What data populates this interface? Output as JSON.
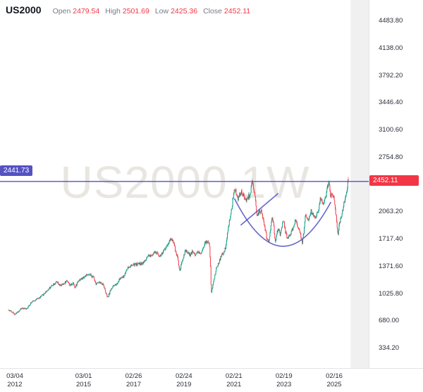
{
  "header": {
    "symbol": "US2000",
    "open_label": "Open",
    "open": "2479.54",
    "high_label": "High",
    "high": "2501.69",
    "low_label": "Low",
    "low": "2425.36",
    "close_label": "Close",
    "close": "2452.11"
  },
  "watermark": "US2000 1W",
  "colors": {
    "up": "#089981",
    "down": "#f23645",
    "value_text": "#f23645",
    "label_text": "#787b86",
    "axis_text": "#2a2e39",
    "line_purple": "#5552c4",
    "arc_purple": "rgba(85,88,196,0.9)",
    "last_price_bg": "#f23645",
    "line_badge_bg": "#5552c4",
    "future_band": "#f0f0f1",
    "watermark_color": "#e9e6e1"
  },
  "price_axis": {
    "ticks": [
      {
        "label": "4483.80",
        "value": 4483.8
      },
      {
        "label": "4138.00",
        "value": 4138.0
      },
      {
        "label": "3792.20",
        "value": 3792.2
      },
      {
        "label": "3446.40",
        "value": 3446.4
      },
      {
        "label": "3100.60",
        "value": 3100.6
      },
      {
        "label": "2754.80",
        "value": 2754.8
      },
      {
        "label": "2063.20",
        "value": 2063.2
      },
      {
        "label": "1717.40",
        "value": 1717.4
      },
      {
        "label": "1371.60",
        "value": 1371.6
      },
      {
        "label": "1025.80",
        "value": 1025.8
      },
      {
        "label": "680.00",
        "value": 680.0
      },
      {
        "label": "334.20",
        "value": 334.2
      }
    ]
  },
  "time_axis": {
    "ticks": [
      {
        "date": "03/04",
        "year": "2012",
        "t": 2012.17
      },
      {
        "date": "03/01",
        "year": "2015",
        "t": 2015.16
      },
      {
        "date": "02/26",
        "year": "2017",
        "t": 2017.15
      },
      {
        "date": "02/24",
        "year": "2019",
        "t": 2019.15
      },
      {
        "date": "02/21",
        "year": "2021",
        "t": 2021.14
      },
      {
        "date": "02/19",
        "year": "2023",
        "t": 2023.13
      },
      {
        "date": "02/16",
        "year": "2025",
        "t": 2025.13
      }
    ]
  },
  "last_price": {
    "label": "2452.11",
    "value": 2452.11
  },
  "drawing_line": {
    "label": "2441.73",
    "price": 2441.73
  },
  "chart_data": {
    "type": "candlestick",
    "symbol": "US2000",
    "timeframe": "1W",
    "title": "US2000 1W",
    "x_range": [
      2012.17,
      2025.7
    ],
    "y_ticks": [
      334.2,
      680.0,
      1025.8,
      1371.6,
      1717.4,
      2063.2,
      2409.0,
      2754.8,
      3100.6,
      3446.4,
      3792.2,
      4138.0,
      4483.8
    ],
    "grid": false,
    "last_bar": {
      "open": 2479.54,
      "high": 2501.69,
      "low": 2425.36,
      "close": 2452.11
    },
    "anchors": [
      [
        2012.17,
        810
      ],
      [
        2012.3,
        795
      ],
      [
        2012.42,
        755
      ],
      [
        2012.55,
        790
      ],
      [
        2012.7,
        835
      ],
      [
        2012.85,
        825
      ],
      [
        2012.95,
        850
      ],
      [
        2013.05,
        900
      ],
      [
        2013.2,
        935
      ],
      [
        2013.35,
        955
      ],
      [
        2013.5,
        990
      ],
      [
        2013.65,
        1040
      ],
      [
        2013.8,
        1090
      ],
      [
        2013.95,
        1140
      ],
      [
        2014.1,
        1165
      ],
      [
        2014.2,
        1120
      ],
      [
        2014.35,
        1135
      ],
      [
        2014.5,
        1190
      ],
      [
        2014.62,
        1120
      ],
      [
        2014.75,
        1160
      ],
      [
        2014.82,
        1090
      ],
      [
        2014.95,
        1190
      ],
      [
        2015.1,
        1210
      ],
      [
        2015.25,
        1250
      ],
      [
        2015.4,
        1255
      ],
      [
        2015.55,
        1230
      ],
      [
        2015.65,
        1150
      ],
      [
        2015.8,
        1160
      ],
      [
        2015.95,
        1135
      ],
      [
        2016.05,
        1020
      ],
      [
        2016.12,
        965
      ],
      [
        2016.25,
        1080
      ],
      [
        2016.4,
        1130
      ],
      [
        2016.5,
        1150
      ],
      [
        2016.6,
        1210
      ],
      [
        2016.75,
        1230
      ],
      [
        2016.9,
        1345
      ],
      [
        2017.0,
        1365
      ],
      [
        2017.15,
        1385
      ],
      [
        2017.3,
        1395
      ],
      [
        2017.45,
        1400
      ],
      [
        2017.6,
        1430
      ],
      [
        2017.7,
        1480
      ],
      [
        2017.85,
        1510
      ],
      [
        2017.95,
        1540
      ],
      [
        2018.1,
        1530
      ],
      [
        2018.2,
        1495
      ],
      [
        2018.35,
        1560
      ],
      [
        2018.5,
        1645
      ],
      [
        2018.62,
        1720
      ],
      [
        2018.72,
        1690
      ],
      [
        2018.82,
        1560
      ],
      [
        2018.9,
        1480
      ],
      [
        2018.98,
        1300
      ],
      [
        2019.1,
        1450
      ],
      [
        2019.2,
        1560
      ],
      [
        2019.3,
        1540
      ],
      [
        2019.4,
        1510
      ],
      [
        2019.5,
        1560
      ],
      [
        2019.6,
        1510
      ],
      [
        2019.7,
        1560
      ],
      [
        2019.8,
        1520
      ],
      [
        2019.9,
        1590
      ],
      [
        2019.98,
        1660
      ],
      [
        2020.1,
        1680
      ],
      [
        2020.16,
        1650
      ],
      [
        2020.2,
        1440
      ],
      [
        2020.24,
        1020
      ],
      [
        2020.3,
        1130
      ],
      [
        2020.38,
        1250
      ],
      [
        2020.45,
        1350
      ],
      [
        2020.55,
        1420
      ],
      [
        2020.65,
        1510
      ],
      [
        2020.75,
        1540
      ],
      [
        2020.82,
        1620
      ],
      [
        2020.9,
        1820
      ],
      [
        2020.98,
        1970
      ],
      [
        2021.06,
        2100
      ],
      [
        2021.12,
        2290
      ],
      [
        2021.2,
        2340
      ],
      [
        2021.28,
        2210
      ],
      [
        2021.36,
        2270
      ],
      [
        2021.45,
        2310
      ],
      [
        2021.55,
        2240
      ],
      [
        2021.65,
        2210
      ],
      [
        2021.72,
        2250
      ],
      [
        2021.8,
        2290
      ],
      [
        2021.86,
        2440
      ],
      [
        2021.92,
        2330
      ],
      [
        2021.98,
        2240
      ],
      [
        2022.06,
        2020
      ],
      [
        2022.14,
        2050
      ],
      [
        2022.22,
        2080
      ],
      [
        2022.3,
        1960
      ],
      [
        2022.38,
        1840
      ],
      [
        2022.45,
        1720
      ],
      [
        2022.52,
        1680
      ],
      [
        2022.6,
        1830
      ],
      [
        2022.65,
        2000
      ],
      [
        2022.72,
        1880
      ],
      [
        2022.78,
        1670
      ],
      [
        2022.85,
        1790
      ],
      [
        2022.92,
        1840
      ],
      [
        2022.98,
        1750
      ],
      [
        2023.06,
        1890
      ],
      [
        2023.12,
        1930
      ],
      [
        2023.2,
        1790
      ],
      [
        2023.26,
        1720
      ],
      [
        2023.35,
        1760
      ],
      [
        2023.45,
        1810
      ],
      [
        2023.52,
        1880
      ],
      [
        2023.6,
        1960
      ],
      [
        2023.66,
        1890
      ],
      [
        2023.75,
        1830
      ],
      [
        2023.82,
        1720
      ],
      [
        2023.86,
        1640
      ],
      [
        2023.92,
        1800
      ],
      [
        2023.98,
        2010
      ],
      [
        2024.05,
        1980
      ],
      [
        2024.12,
        1960
      ],
      [
        2024.2,
        2070
      ],
      [
        2024.28,
        2020
      ],
      [
        2024.35,
        1980
      ],
      [
        2024.45,
        2030
      ],
      [
        2024.52,
        2110
      ],
      [
        2024.58,
        2240
      ],
      [
        2024.65,
        2170
      ],
      [
        2024.72,
        2200
      ],
      [
        2024.8,
        2270
      ],
      [
        2024.87,
        2400
      ],
      [
        2024.92,
        2430
      ],
      [
        2024.98,
        2250
      ],
      [
        2025.05,
        2280
      ],
      [
        2025.12,
        2260
      ],
      [
        2025.18,
        2080
      ],
      [
        2025.24,
        1890
      ],
      [
        2025.28,
        1770
      ],
      [
        2025.34,
        1920
      ],
      [
        2025.42,
        2020
      ],
      [
        2025.5,
        2130
      ],
      [
        2025.56,
        2230
      ],
      [
        2025.62,
        2280
      ],
      [
        2025.66,
        2400
      ],
      [
        2025.7,
        2452.11
      ]
    ],
    "annotations": {
      "horizontal_line": {
        "price": 2441.73,
        "label": "2441.73"
      },
      "arc": {
        "from": {
          "t": 2021.16,
          "p": 2226
        },
        "control": {
          "t": 2023.05,
          "p": 1036
        },
        "to": {
          "t": 2025.0,
          "p": 2181
        }
      },
      "trend_line": {
        "from": {
          "t": 2021.41,
          "p": 1887
        },
        "to": {
          "t": 2022.9,
          "p": 2290
        }
      }
    }
  }
}
